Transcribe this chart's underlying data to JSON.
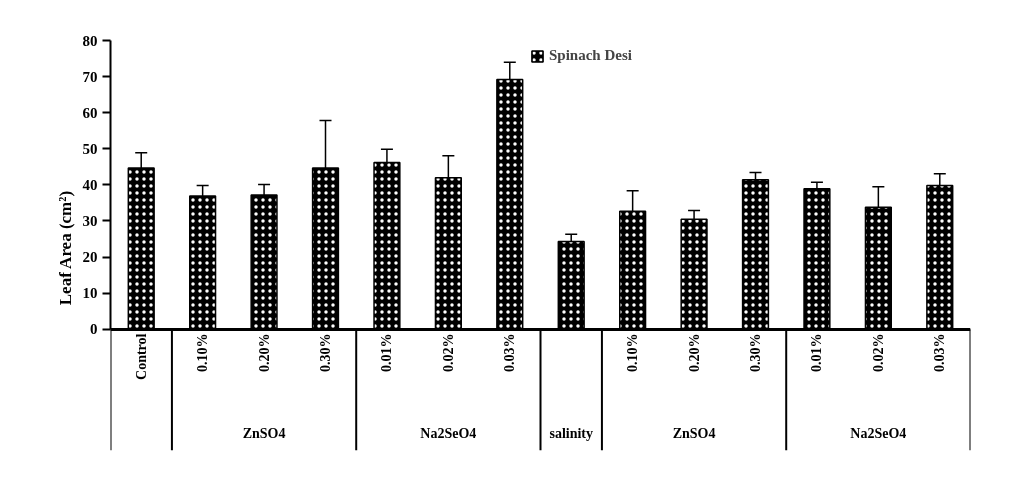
{
  "chart_data": {
    "type": "bar",
    "ylabel": "Leaf  Area (cm²)",
    "categories": [
      "Control",
      "0.10%",
      "0.20%",
      "0.30%",
      "0.01%",
      "0.02%",
      "0.03%",
      null,
      "0.10%",
      "0.20%",
      "0.30%",
      "0.01%",
      "0.02%",
      "0.03%"
    ],
    "series": [
      {
        "name": "Spinach Desi",
        "color": "#000000",
        "values": [
          44.7,
          36.9,
          37.2,
          44.7,
          46.2,
          42.0,
          69.2,
          24.3,
          32.7,
          30.5,
          41.4,
          38.9,
          33.8,
          39.8
        ],
        "errors": [
          4.2,
          2.9,
          2.9,
          13.1,
          3.7,
          6.1,
          4.8,
          2.0,
          5.7,
          2.4,
          2.0,
          1.8,
          5.7,
          3.3
        ]
      }
    ],
    "annotations": [
      "ZnSO4",
      "Na2SeO4",
      "salinity",
      "ZnSO4",
      "Na2SeO4"
    ],
    "ylim": [
      0,
      80
    ],
    "yticks": [
      0,
      10,
      20,
      30,
      40,
      50,
      60,
      70,
      80
    ],
    "grid": false,
    "legend": "top"
  }
}
